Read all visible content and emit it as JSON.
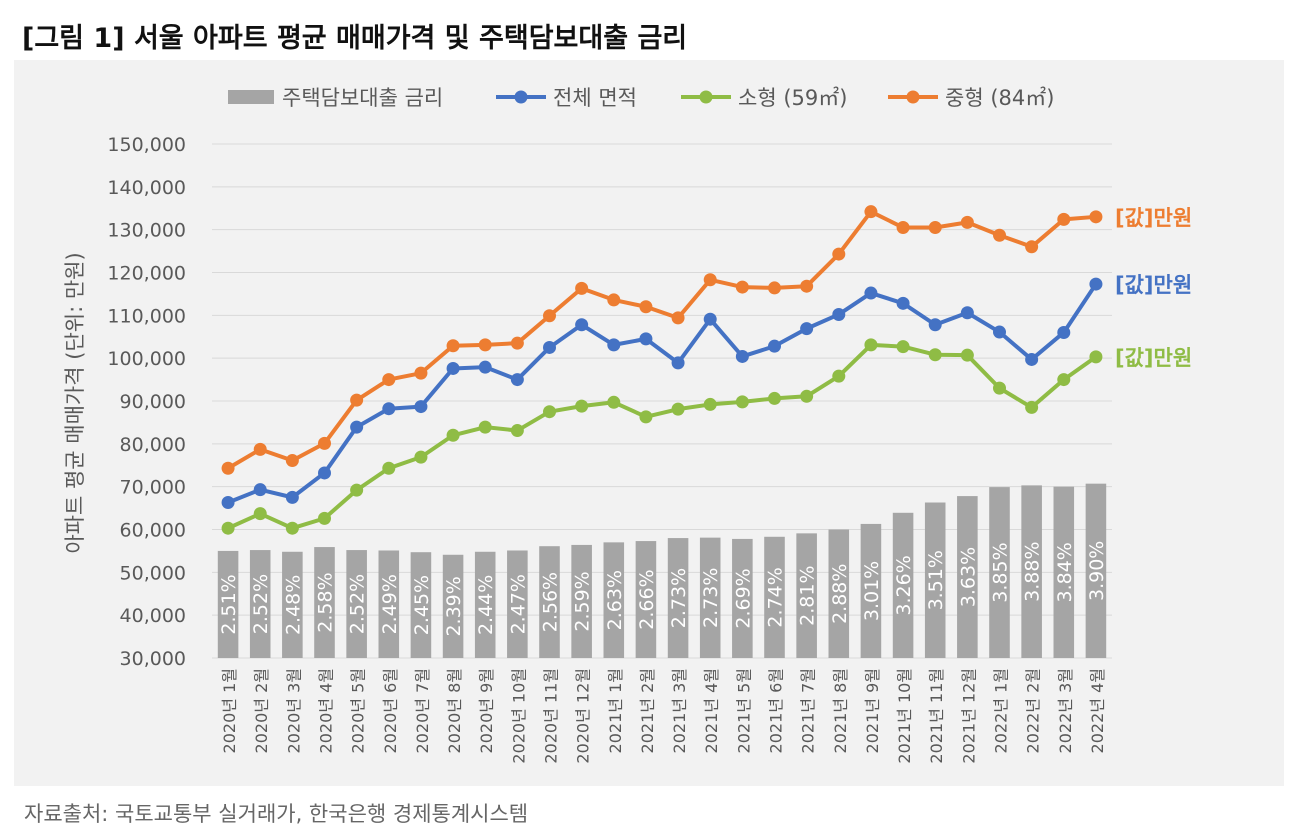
{
  "title": "[그림 1] 서울 아파트 평균 매매가격 및 주택담보대출 금리",
  "source": "자료출처: 국토교통부 실거래가, 한국은행 경제통계시스템",
  "colors": {
    "bar": "#a5a5a5",
    "total": "#4472c4",
    "small": "#8fbc45",
    "medium": "#ed7d31",
    "grid": "#d9d9d9",
    "axis_text": "#595959",
    "background": "#f2f2f2"
  },
  "chart_data": {
    "type": "bar",
    "ylabel": "아파트 평균 매매가격 (단위: 만원)",
    "ylim": [
      30000,
      150000
    ],
    "ytick_step": 10000,
    "grid": true,
    "legend_position": "top",
    "categories": [
      "2020년 1월",
      "2020년 2월",
      "2020년 3월",
      "2020년 4월",
      "2020년 5월",
      "2020년 6월",
      "2020년 7월",
      "2020년 8월",
      "2020년 9월",
      "2020년 10월",
      "2020년 11월",
      "2020년 12월",
      "2021년 1월",
      "2021년 2월",
      "2021년 3월",
      "2021년 4월",
      "2021년 5월",
      "2021년 6월",
      "2021년 7월",
      "2021년 8월",
      "2021년 9월",
      "2021년 10월",
      "2021년 11월",
      "2021년 12월",
      "2022년 1월",
      "2022년 2월",
      "2022년 3월",
      "2022년 4월"
    ],
    "rate_series": {
      "name": "주택담보대출 금리",
      "type": "bar",
      "labels": [
        "2.51%",
        "2.52%",
        "2.48%",
        "2.58%",
        "2.52%",
        "2.49%",
        "2.45%",
        "2.39%",
        "2.44%",
        "2.47%",
        "2.56%",
        "2.59%",
        "2.63%",
        "2.66%",
        "2.73%",
        "2.73%",
        "2.69%",
        "2.74%",
        "2.81%",
        "2.88%",
        "3.01%",
        "3.26%",
        "3.51%",
        "3.63%",
        "3.85%",
        "3.88%",
        "3.84%",
        "3.90%"
      ],
      "bar_heights": [
        55000,
        55200,
        54800,
        55900,
        55200,
        55100,
        54700,
        54100,
        54800,
        55100,
        56100,
        56400,
        57000,
        57300,
        58000,
        58100,
        57800,
        58300,
        59100,
        60000,
        61300,
        63900,
        66300,
        67800,
        69900,
        70300,
        70000,
        70700
      ]
    },
    "series": [
      {
        "name": "전체 면적",
        "type": "line",
        "color": "#4472c4",
        "end_label": "[값]만원",
        "values": [
          66300,
          69300,
          67500,
          73200,
          83900,
          88200,
          88700,
          97600,
          97900,
          95000,
          102500,
          107800,
          103100,
          104500,
          98900,
          109100,
          100400,
          102800,
          106900,
          110200,
          115200,
          112800,
          107800,
          110600,
          106100,
          99700,
          106000,
          117300
        ]
      },
      {
        "name": "소형 (59㎡)",
        "type": "line",
        "color": "#8fbc45",
        "end_label": "[값]만원",
        "values": [
          60300,
          63700,
          60300,
          62600,
          69200,
          74300,
          76900,
          82000,
          83900,
          83100,
          87500,
          88800,
          89700,
          86300,
          88100,
          89200,
          89800,
          90600,
          91100,
          95800,
          103100,
          102700,
          100800,
          100700,
          93000,
          88500,
          95000,
          100300
        ]
      },
      {
        "name": "중형 (84㎡)",
        "type": "line",
        "color": "#ed7d31",
        "end_label": "[값]만원",
        "values": [
          74300,
          78700,
          76100,
          80100,
          90200,
          95000,
          96500,
          102900,
          103100,
          103500,
          109900,
          116300,
          113600,
          112000,
          109400,
          118300,
          116600,
          116400,
          116800,
          124300,
          134200,
          130500,
          130500,
          131700,
          128700,
          126000,
          132400,
          133000
        ]
      }
    ]
  }
}
